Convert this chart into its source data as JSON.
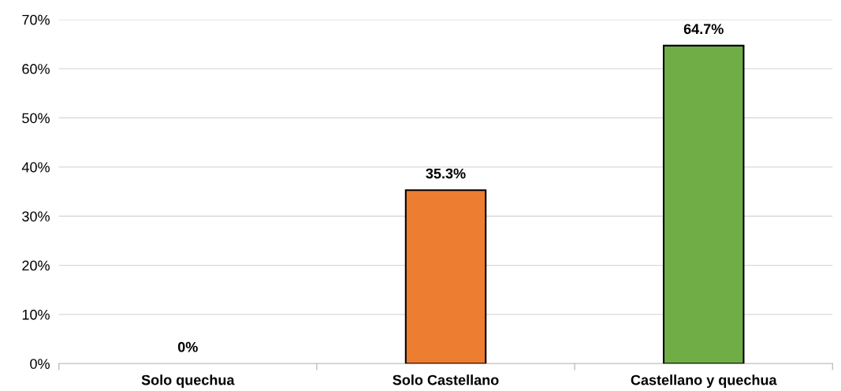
{
  "chart_data": {
    "type": "bar",
    "categories": [
      "Solo quechua",
      "Solo Castellano",
      "Castellano y quechua"
    ],
    "values": [
      0,
      35.3,
      64.7
    ],
    "colors": [
      null,
      "#ed7d31",
      "#70ad47"
    ],
    "value_labels": [
      "0%",
      "35.3%",
      "64.7%"
    ],
    "ylim": [
      0,
      70
    ],
    "yticks": [
      {
        "value": 0,
        "label": "0%"
      },
      {
        "value": 10,
        "label": "10%"
      },
      {
        "value": 20,
        "label": "20%"
      },
      {
        "value": 30,
        "label": "30%"
      },
      {
        "value": 40,
        "label": "40%"
      },
      {
        "value": 50,
        "label": "50%"
      },
      {
        "value": 60,
        "label": "60%"
      },
      {
        "value": 70,
        "label": "70%"
      }
    ],
    "grid": "y"
  }
}
